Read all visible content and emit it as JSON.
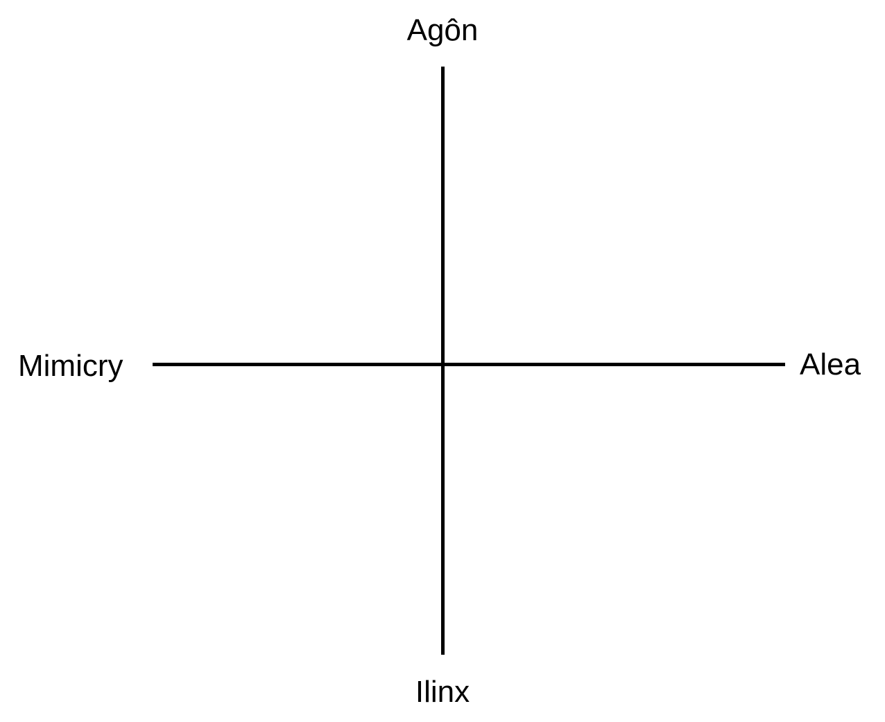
{
  "diagram": {
    "poles": {
      "top": "Agôn",
      "bottom": "Ilinx",
      "left": "Mimicry",
      "right": "Alea"
    },
    "line_color": "#000000",
    "background_color": "#ffffff"
  }
}
